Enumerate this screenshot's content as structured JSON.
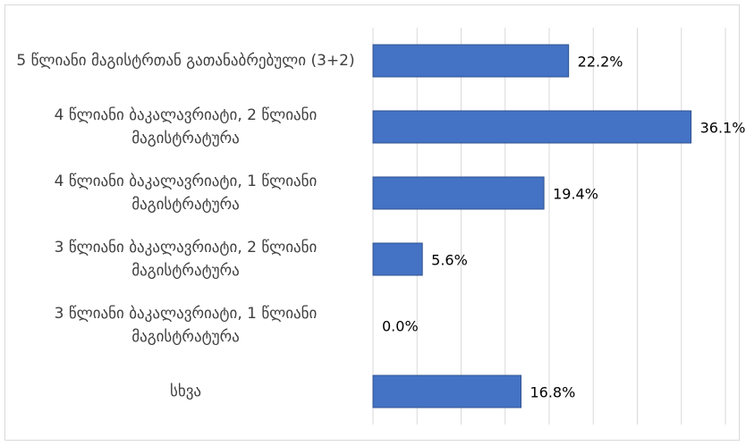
{
  "chart_data": {
    "type": "bar",
    "orientation": "horizontal",
    "categories": [
      "5 წლიანი მაგისტრთან გათანაბრებული (3+2)",
      "4 წლიანი ბაკალავრიატი, 2 წლიანი მაგისტრატურა",
      "4 წლიანი ბაკალავრიატი, 1 წლიანი მაგისტრატურა",
      "3 წლიანი ბაკალავრიატი, 2 წლიანი მაგისტრატურა",
      "3 წლიანი ბაკალავრიატი, 1 წლიანი მაგისტრატურა",
      "სხვა"
    ],
    "values": [
      22.2,
      36.1,
      19.4,
      5.6,
      0.0,
      16.8
    ],
    "value_labels": [
      "22.2%",
      "36.1%",
      "19.4%",
      "5.6%",
      "0.0%",
      "16.8%"
    ],
    "color": "#4472c4",
    "xlim": [
      0,
      40
    ],
    "xticks": [
      0,
      5,
      10,
      15,
      20,
      25,
      30,
      35,
      40
    ],
    "grid": true
  }
}
